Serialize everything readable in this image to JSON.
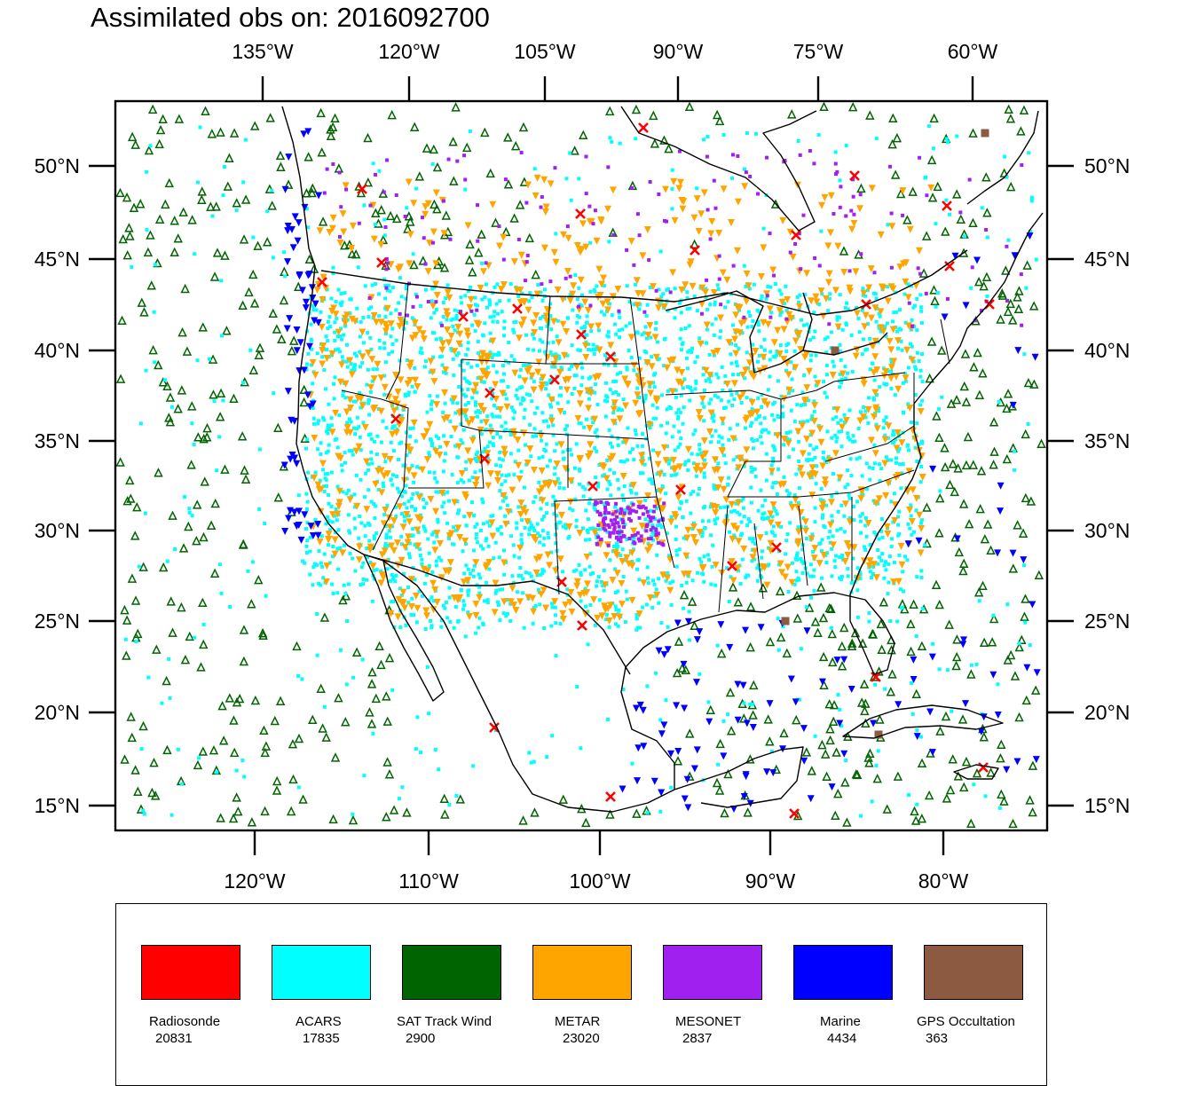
{
  "title": "Assimilated obs on: 2016092700",
  "axes": {
    "top_lon_labels": [
      "135°W",
      "120°W",
      "105°W",
      "90°W",
      "75°W",
      "60°W"
    ],
    "bottom_lon_labels": [
      "120°W",
      "110°W",
      "100°W",
      "90°W",
      "80°W"
    ],
    "lat_labels": [
      "50°N",
      "45°N",
      "40°N",
      "35°N",
      "30°N",
      "25°N",
      "20°N",
      "15°N"
    ]
  },
  "legend": [
    {
      "name": "Radiosonde",
      "count": "20831",
      "color": "#ff0000"
    },
    {
      "name": "ACARS",
      "count": "17835",
      "color": "#00ffff"
    },
    {
      "name": "SAT Track Wind",
      "count": "2900",
      "color": "#006400"
    },
    {
      "name": "METAR",
      "count": "23020",
      "color": "#ffa500"
    },
    {
      "name": "MESONET",
      "count": "2837",
      "color": "#a020f0"
    },
    {
      "name": "Marine",
      "count": "4434",
      "color": "#0000ff"
    },
    {
      "name": "GPS Occultation",
      "count": "363",
      "color": "#8b5a40"
    }
  ]
}
